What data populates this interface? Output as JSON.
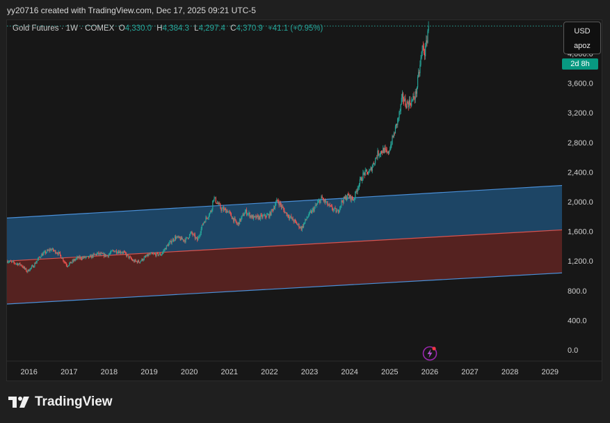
{
  "header": {
    "credit": "yy20716 created with TradingView.com, Dec 17, 2025 09:21 UTC-5"
  },
  "legend": {
    "symbol": "Gold Futures · 1W · COMEX",
    "open_label": "O",
    "open": "4,330.0",
    "high_label": "H",
    "high": "4,384.3",
    "low_label": "L",
    "low": "4,297.4",
    "close_label": "C",
    "close": "4,370.9",
    "change": "+41.1 (+0.95%)"
  },
  "price_scale": {
    "currency": "USD",
    "unit": "apoz",
    "countdown": "2d 8h"
  },
  "brand": {
    "name": "TradingView"
  },
  "icons": {
    "lightning": "lightning-icon",
    "logo": "tradingview-logo-icon"
  },
  "colors": {
    "up": "#26a69a",
    "down": "#ef5350",
    "upper_band_fill": "#1f4e73",
    "lower_band_fill": "#5c2421",
    "band_edge": "#4a90d9",
    "mid_line": "#d9534f",
    "countdown_bg": "#089981"
  },
  "chart_data": {
    "type": "candlestick",
    "ylim": [
      -150,
      4450
    ],
    "xlim": [
      2015.45,
      2029.3
    ],
    "y_ticks": [
      {
        "value": 0,
        "label": "0.0"
      },
      {
        "value": 400,
        "label": "400.0"
      },
      {
        "value": 800,
        "label": "800.0"
      },
      {
        "value": 1200,
        "label": "1,200.0"
      },
      {
        "value": 1600,
        "label": "1,600.0"
      },
      {
        "value": 2000,
        "label": "2,000.0"
      },
      {
        "value": 2400,
        "label": "2,400.0"
      },
      {
        "value": 2800,
        "label": "2,800.0"
      },
      {
        "value": 3200,
        "label": "3,200.0"
      },
      {
        "value": 3600,
        "label": "3,600.0"
      },
      {
        "value": 4000,
        "label": "4,000.0"
      }
    ],
    "x_ticks": [
      {
        "value": 2016,
        "label": "2016"
      },
      {
        "value": 2017,
        "label": "2017"
      },
      {
        "value": 2018,
        "label": "2018"
      },
      {
        "value": 2019,
        "label": "2019"
      },
      {
        "value": 2020,
        "label": "2020"
      },
      {
        "value": 2021,
        "label": "2021"
      },
      {
        "value": 2022,
        "label": "2022"
      },
      {
        "value": 2023,
        "label": "2023"
      },
      {
        "value": 2024,
        "label": "2024"
      },
      {
        "value": 2025,
        "label": "2025"
      },
      {
        "value": 2026,
        "label": "2026"
      },
      {
        "value": 2027,
        "label": "2027"
      },
      {
        "value": 2028,
        "label": "2028"
      },
      {
        "value": 2029,
        "label": "2029"
      }
    ],
    "last_price": 4370.9,
    "price_path": [
      [
        2015.45,
        1200
      ],
      [
        2015.8,
        1150
      ],
      [
        2015.95,
        1060
      ],
      [
        2016.1,
        1130
      ],
      [
        2016.3,
        1280
      ],
      [
        2016.55,
        1360
      ],
      [
        2016.75,
        1300
      ],
      [
        2016.95,
        1140
      ],
      [
        2017.2,
        1240
      ],
      [
        2017.5,
        1250
      ],
      [
        2017.7,
        1300
      ],
      [
        2017.95,
        1270
      ],
      [
        2018.1,
        1340
      ],
      [
        2018.35,
        1320
      ],
      [
        2018.6,
        1200
      ],
      [
        2018.75,
        1190
      ],
      [
        2019.0,
        1290
      ],
      [
        2019.3,
        1290
      ],
      [
        2019.45,
        1410
      ],
      [
        2019.65,
        1520
      ],
      [
        2019.9,
        1480
      ],
      [
        2020.05,
        1580
      ],
      [
        2020.2,
        1480
      ],
      [
        2020.35,
        1720
      ],
      [
        2020.55,
        1880
      ],
      [
        2020.6,
        2060
      ],
      [
        2020.8,
        1900
      ],
      [
        2020.95,
        1880
      ],
      [
        2021.2,
        1690
      ],
      [
        2021.4,
        1870
      ],
      [
        2021.6,
        1780
      ],
      [
        2021.85,
        1800
      ],
      [
        2022.0,
        1820
      ],
      [
        2022.2,
        2020
      ],
      [
        2022.4,
        1850
      ],
      [
        2022.65,
        1720
      ],
      [
        2022.8,
        1640
      ],
      [
        2022.95,
        1800
      ],
      [
        2023.1,
        1900
      ],
      [
        2023.3,
        2050
      ],
      [
        2023.5,
        1930
      ],
      [
        2023.7,
        1860
      ],
      [
        2023.8,
        2000
      ],
      [
        2023.95,
        2080
      ],
      [
        2024.1,
        2030
      ],
      [
        2024.2,
        2200
      ],
      [
        2024.35,
        2380
      ],
      [
        2024.5,
        2400
      ],
      [
        2024.7,
        2650
      ],
      [
        2024.85,
        2700
      ],
      [
        2024.95,
        2640
      ],
      [
        2025.1,
        2900
      ],
      [
        2025.25,
        3200
      ],
      [
        2025.32,
        3420
      ],
      [
        2025.4,
        3320
      ],
      [
        2025.55,
        3350
      ],
      [
        2025.65,
        3450
      ],
      [
        2025.75,
        3800
      ],
      [
        2025.82,
        4100
      ],
      [
        2025.88,
        4000
      ],
      [
        2025.93,
        4200
      ],
      [
        2025.96,
        4370
      ]
    ],
    "regression_channel": {
      "start_x": 2015.45,
      "end_x": 2029.3,
      "upper": [
        1780,
        2220
      ],
      "middle": [
        1200,
        1620
      ],
      "lower": [
        620,
        1040
      ]
    }
  }
}
